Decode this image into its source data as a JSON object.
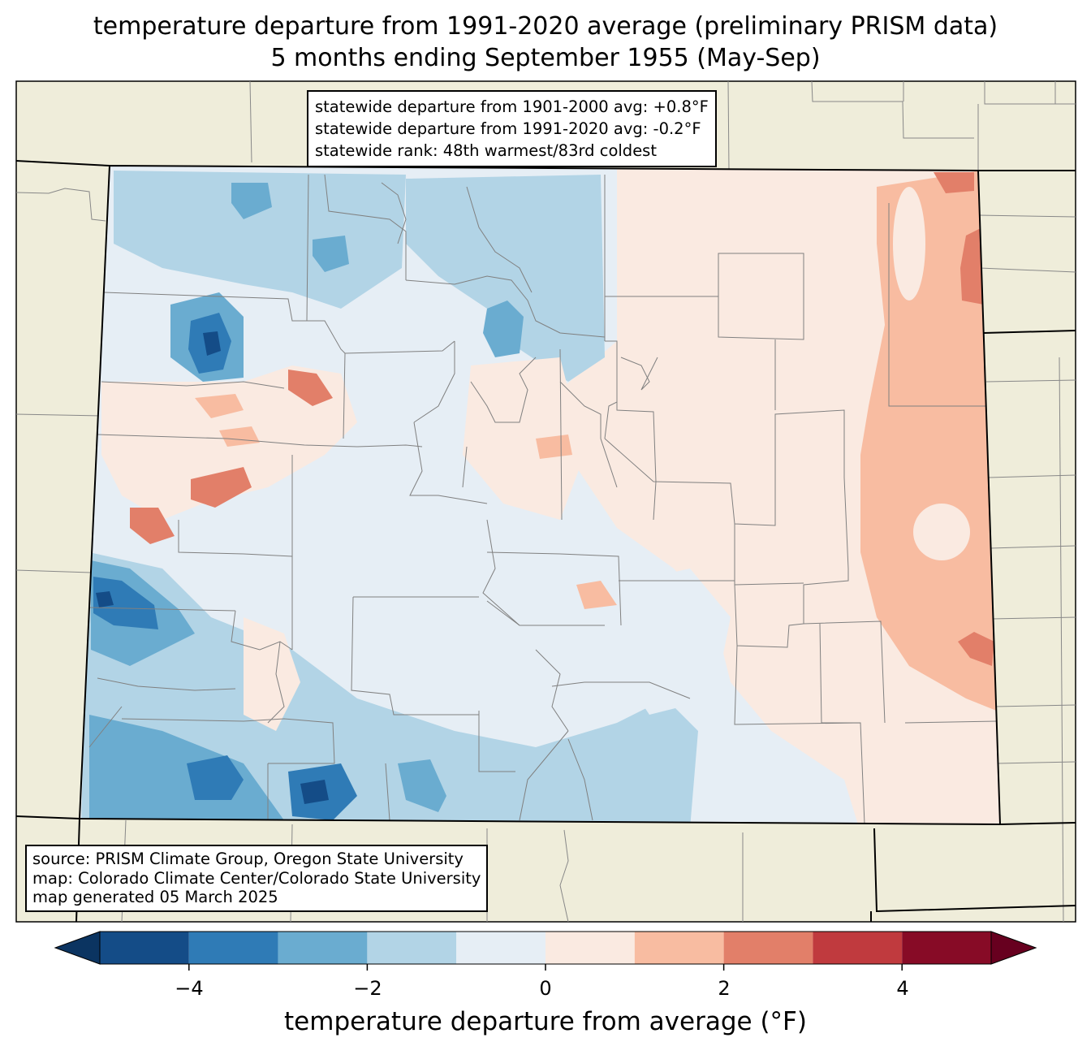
{
  "title": {
    "line1": "temperature departure from 1991-2020 average (preliminary PRISM data)",
    "line2": "5 months ending September 1955 (May-Sep)"
  },
  "stats": {
    "line1": "statewide departure from 1901-2000 avg: +0.8°F",
    "line2": "statewide departure from 1991-2020 avg: -0.2°F",
    "line3": "statewide rank: 48th warmest/83rd coldest"
  },
  "credits": {
    "source": "source: PRISM Climate Group, Oregon State University",
    "map": "map: Colorado Climate Center/Colorado State University",
    "generated": "map generated 05 March 2025"
  },
  "colorbar": {
    "label": "temperature departure from average (°F)",
    "ticks": [
      "−4",
      "−2",
      "0",
      "2",
      "4"
    ],
    "range": [
      -5,
      5
    ],
    "bins": [
      -5,
      -4,
      -3,
      -2,
      -1,
      0,
      1,
      2,
      3,
      4,
      5
    ],
    "colors": [
      "#144c87",
      "#2f7bb6",
      "#6aacd0",
      "#b2d4e6",
      "#e6eef5",
      "#faeae1",
      "#f8bca1",
      "#e27f69",
      "#c03a3e",
      "#870b26"
    ],
    "under_color": "#0b3461",
    "over_color": "#67001f"
  },
  "colors": {
    "land_background": "#efedda",
    "state_border": "#000000",
    "county_border": "#888888"
  }
}
